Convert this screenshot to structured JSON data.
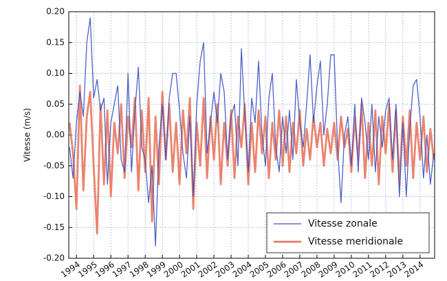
{
  "chart_data": {
    "type": "line",
    "ylabel": "Vitesse (m/s)",
    "x": [
      1993.6,
      1993.8,
      1994.0,
      1994.2,
      1994.4,
      1994.6,
      1994.8,
      1995.0,
      1995.2,
      1995.4,
      1995.6,
      1995.8,
      1996.0,
      1996.2,
      1996.4,
      1996.6,
      1996.8,
      1997.0,
      1997.2,
      1997.4,
      1997.6,
      1997.8,
      1998.0,
      1998.2,
      1998.4,
      1998.6,
      1998.8,
      1999.0,
      1999.2,
      1999.4,
      1999.6,
      1999.8,
      2000.0,
      2000.2,
      2000.4,
      2000.6,
      2000.8,
      2001.0,
      2001.2,
      2001.4,
      2001.6,
      2001.8,
      2002.0,
      2002.2,
      2002.4,
      2002.6,
      2002.8,
      2003.0,
      2003.2,
      2003.4,
      2003.6,
      2003.8,
      2004.0,
      2004.2,
      2004.4,
      2004.6,
      2004.8,
      2005.0,
      2005.2,
      2005.4,
      2005.6,
      2005.8,
      2006.0,
      2006.2,
      2006.4,
      2006.6,
      2006.8,
      2007.0,
      2007.2,
      2007.4,
      2007.6,
      2007.8,
      2008.0,
      2008.2,
      2008.4,
      2008.6,
      2008.8,
      2009.0,
      2009.2,
      2009.4,
      2009.6,
      2009.8,
      2010.0,
      2010.2,
      2010.4,
      2010.6,
      2010.8,
      2011.0,
      2011.2,
      2011.4,
      2011.6,
      2011.8,
      2012.0,
      2012.2,
      2012.4,
      2012.6,
      2012.8,
      2013.0,
      2013.2,
      2013.4,
      2013.6,
      2013.8,
      2014.0,
      2014.2,
      2014.4,
      2014.6,
      2014.8
    ],
    "series": [
      {
        "name": "Vitesse zonale",
        "color": "#3a4fbf",
        "width": 1.3,
        "values": [
          -0.02,
          -0.07,
          0.02,
          0.07,
          0.03,
          0.15,
          0.19,
          0.06,
          0.09,
          0.04,
          0.06,
          -0.08,
          0.02,
          0.05,
          0.08,
          -0.04,
          -0.06,
          0.1,
          -0.06,
          0.04,
          0.11,
          -0.02,
          -0.04,
          -0.11,
          -0.05,
          -0.18,
          -0.02,
          0.05,
          -0.04,
          0.06,
          0.1,
          0.1,
          0.04,
          -0.03,
          -0.07,
          0.03,
          -0.1,
          0.05,
          0.12,
          0.15,
          -0.03,
          0.02,
          0.07,
          0.02,
          0.1,
          0.07,
          -0.04,
          0.03,
          0.05,
          -0.05,
          0.14,
          0.03,
          -0.06,
          0.06,
          0.02,
          0.12,
          0.0,
          -0.05,
          0.06,
          0.1,
          -0.02,
          -0.06,
          0.03,
          -0.03,
          0.04,
          -0.04,
          0.09,
          0.02,
          -0.02,
          0.05,
          0.13,
          0.02,
          0.08,
          0.12,
          0.0,
          0.05,
          0.13,
          0.13,
          -0.02,
          -0.11,
          0.0,
          0.03,
          -0.05,
          0.05,
          -0.06,
          0.06,
          0.02,
          -0.04,
          0.05,
          -0.06,
          0.03,
          -0.02,
          0.04,
          0.06,
          -0.04,
          0.05,
          -0.1,
          0.02,
          -0.1,
          0.01,
          0.08,
          0.09,
          0.03,
          -0.07,
          0.0,
          -0.08,
          -0.03
        ]
      },
      {
        "name": "Vitesse meridionale",
        "color": "#e9775e",
        "width": 2.8,
        "values": [
          0.02,
          -0.03,
          -0.12,
          0.08,
          -0.09,
          0.03,
          0.07,
          -0.05,
          -0.16,
          0.05,
          -0.08,
          0.04,
          -0.1,
          0.02,
          -0.03,
          0.05,
          -0.07,
          0.03,
          -0.02,
          0.06,
          -0.09,
          0.04,
          -0.06,
          0.06,
          -0.14,
          0.03,
          -0.08,
          0.07,
          -0.04,
          0.05,
          -0.06,
          0.02,
          -0.08,
          0.04,
          -0.03,
          0.06,
          -0.12,
          0.02,
          -0.05,
          0.06,
          -0.07,
          0.03,
          -0.04,
          0.05,
          -0.08,
          0.02,
          -0.05,
          0.04,
          -0.07,
          0.03,
          -0.02,
          0.05,
          -0.08,
          0.02,
          -0.06,
          0.04,
          -0.03,
          0.03,
          -0.07,
          0.02,
          -0.04,
          0.04,
          -0.05,
          0.03,
          -0.06,
          0.02,
          -0.03,
          0.04,
          -0.05,
          0.01,
          -0.04,
          0.03,
          -0.02,
          0.02,
          -0.05,
          0.01,
          -0.03,
          0.02,
          -0.04,
          0.03,
          -0.02,
          0.01,
          -0.06,
          0.03,
          -0.04,
          0.05,
          -0.07,
          0.02,
          -0.05,
          0.04,
          -0.08,
          0.03,
          -0.03,
          0.05,
          -0.06,
          0.04,
          -0.08,
          0.03,
          -0.05,
          0.04,
          -0.07,
          0.02,
          -0.04,
          0.03,
          -0.06,
          0.01,
          -0.04
        ]
      }
    ],
    "xlim": [
      1993.55,
      2014.85
    ],
    "xticks": [
      1994,
      1995,
      1996,
      1997,
      1998,
      1999,
      2000,
      2001,
      2002,
      2003,
      2004,
      2005,
      2006,
      2007,
      2008,
      2009,
      2010,
      2011,
      2012,
      2013,
      2014
    ],
    "ylim": [
      -0.2,
      0.2
    ],
    "yticks": [
      {
        "value": -0.2,
        "label": "-0.20"
      },
      {
        "value": -0.15,
        "label": "-0.15"
      },
      {
        "value": -0.1,
        "label": "-0.10"
      },
      {
        "value": -0.05,
        "label": "-0.05"
      },
      {
        "value": 0,
        "label": "0.00"
      },
      {
        "value": 0.05,
        "label": "0.05"
      },
      {
        "value": 0.1,
        "label": "0.10"
      },
      {
        "value": 0.15,
        "label": "0.15"
      },
      {
        "value": 0.2,
        "label": "0.20"
      }
    ],
    "grid": true,
    "legend": "lower right"
  }
}
